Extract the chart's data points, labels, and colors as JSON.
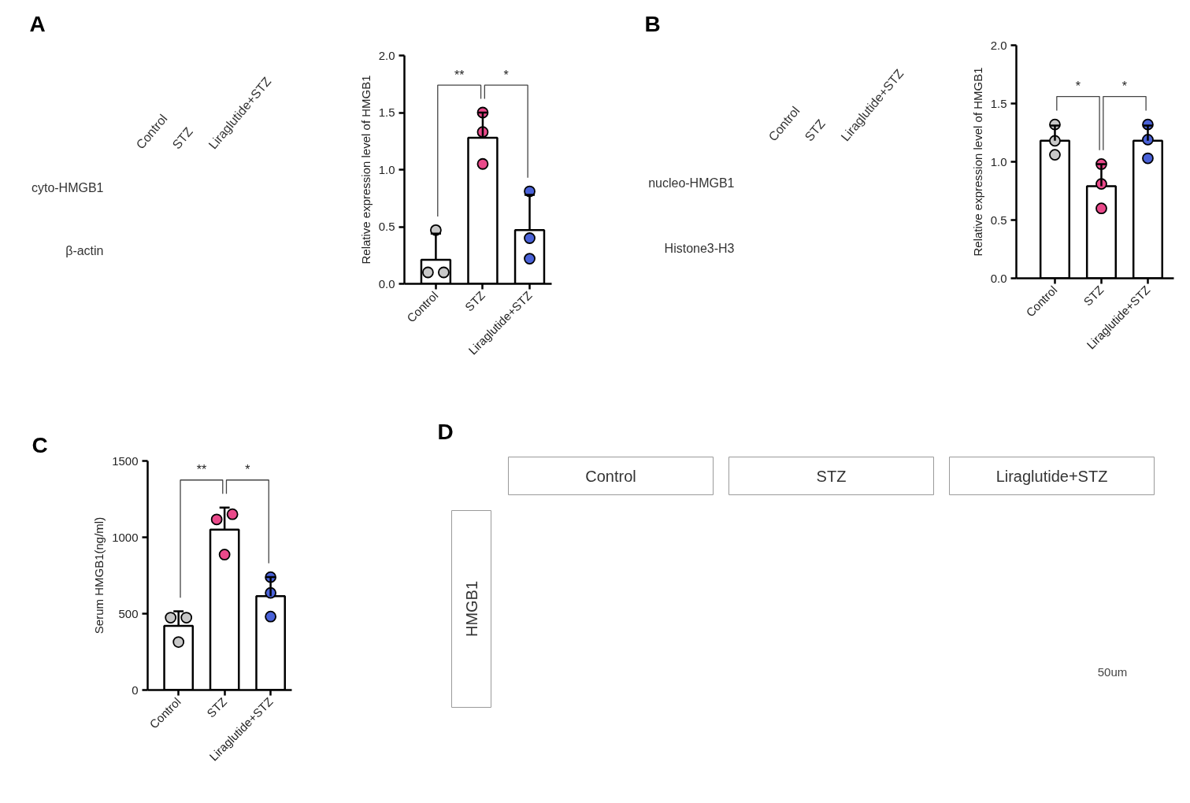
{
  "chart_data": [
    {
      "type": "other",
      "title": "A",
      "categories": [
        "Control",
        "STZ",
        "Liraglutide+STZ"
      ],
      "annotations": [
        "cyto-HMGB1",
        "β-actin"
      ]
    },
    {
      "type": "bar",
      "categories": [
        "Control",
        "STZ",
        "Liraglutide+STZ"
      ],
      "ylabel": "Relative expression level of HMGB1",
      "ylim": [
        0,
        2
      ],
      "yticks": [
        {
          "value": 0,
          "label": "0.0"
        },
        0.5,
        {
          "value": 1,
          "label": "1.0"
        },
        1.5,
        {
          "value": 2,
          "label": "2.0"
        }
      ],
      "series": [
        {
          "type": "bar",
          "color": "#ffffff",
          "values": [
            0.21,
            1.28,
            0.47
          ],
          "errors": [
            [
              0.21,
              0.44
            ],
            [
              1.28,
              1.5
            ],
            [
              0.47,
              0.78
            ]
          ]
        },
        {
          "type": "scatter",
          "marker": "circle",
          "x": [
            "Control",
            "Control",
            "Control",
            "STZ",
            "STZ",
            "STZ",
            "Liraglutide+STZ",
            "Liraglutide+STZ",
            "Liraglutide+STZ"
          ],
          "values": [
            0.47,
            0.1,
            0.1,
            1.5,
            1.33,
            1.05,
            0.81,
            0.4,
            0.22
          ],
          "colors": [
            "#c8c8c8",
            "#c8c8c8",
            "#c8c8c8",
            "#e9498a",
            "#e9498a",
            "#e9498a",
            "#4a62d8",
            "#4a62d8",
            "#4a62d8"
          ]
        }
      ],
      "annotations": [
        "**",
        "*"
      ]
    },
    {
      "type": "other",
      "title": "B",
      "categories": [
        "Control",
        "STZ",
        "Liraglutide+STZ"
      ],
      "annotations": [
        "nucleo-HMGB1",
        "Histone3-H3"
      ]
    },
    {
      "type": "bar",
      "categories": [
        "Control",
        "STZ",
        "Liraglutide+STZ"
      ],
      "ylabel": "Relative expression level of HMGB1",
      "ylim": [
        0,
        2
      ],
      "yticks": [
        {
          "value": 0,
          "label": "0.0"
        },
        0.5,
        {
          "value": 1,
          "label": "1.0"
        },
        1.5,
        {
          "value": 2,
          "label": "2.0"
        }
      ],
      "series": [
        {
          "type": "bar",
          "color": "#ffffff",
          "values": [
            1.18,
            0.79,
            1.18
          ],
          "errors": [
            [
              1.18,
              1.31
            ],
            [
              0.79,
              0.98
            ],
            [
              1.18,
              1.31
            ]
          ]
        },
        {
          "type": "scatter",
          "marker": "circle",
          "x": [
            "Control",
            "Control",
            "Control",
            "STZ",
            "STZ",
            "STZ",
            "Liraglutide+STZ",
            "Liraglutide+STZ",
            "Liraglutide+STZ"
          ],
          "values": [
            1.32,
            1.18,
            1.06,
            0.98,
            0.81,
            0.6,
            1.32,
            1.19,
            1.03
          ],
          "colors": [
            "#c8c8c8",
            "#c8c8c8",
            "#c8c8c8",
            "#e9498a",
            "#e9498a",
            "#e9498a",
            "#4a62d8",
            "#4a62d8",
            "#4a62d8"
          ]
        }
      ],
      "annotations": [
        "*",
        "*"
      ]
    },
    {
      "type": "bar",
      "title": "C",
      "categories": [
        "Control",
        "STZ",
        "Liraglutide+STZ"
      ],
      "ylabel": "Serum HMGB1(ng/ml)",
      "ylim": [
        0,
        1500
      ],
      "yticks": [
        0,
        500,
        1000,
        1500
      ],
      "series": [
        {
          "type": "bar",
          "color": "#ffffff",
          "values": [
            420,
            1050,
            615
          ],
          "errors": [
            [
              420,
              515
            ],
            [
              1050,
              1195
            ],
            [
              615,
              740
            ]
          ]
        },
        {
          "type": "scatter",
          "marker": "circle",
          "x": [
            "Control",
            "Control",
            "Control",
            "STZ",
            "STZ",
            "STZ",
            "Liraglutide+STZ",
            "Liraglutide+STZ",
            "Liraglutide+STZ"
          ],
          "values": [
            474,
            474,
            314,
            1117,
            1151,
            887,
            739,
            636,
            481
          ],
          "colors": [
            "#c8c8c8",
            "#c8c8c8",
            "#c8c8c8",
            "#e9498a",
            "#e9498a",
            "#e9498a",
            "#4a62d8",
            "#4a62d8",
            "#4a62d8"
          ]
        }
      ],
      "annotations": [
        "**",
        "*"
      ]
    },
    {
      "type": "other",
      "title": "D",
      "categories": [
        "Control",
        "STZ",
        "Liraglutide+STZ"
      ],
      "annotations": [
        "HMGB1",
        "50um"
      ]
    }
  ]
}
